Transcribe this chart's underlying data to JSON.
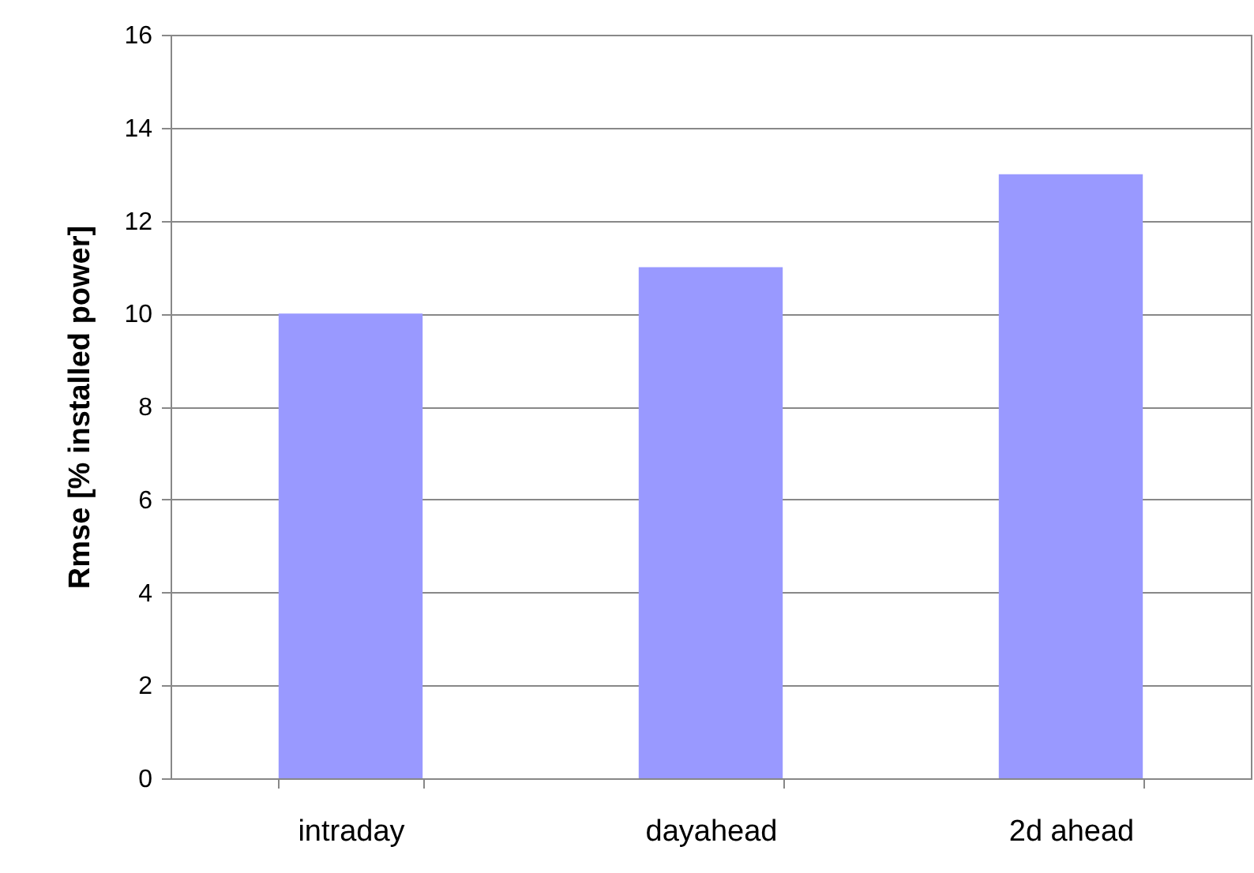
{
  "chart_data": {
    "type": "bar",
    "ylabel": "Rmse [% installed power]",
    "categories": [
      "intraday",
      "dayahead",
      "2d ahead"
    ],
    "series": [
      {
        "color": "#9999ff",
        "values": [
          10,
          11,
          13
        ]
      }
    ],
    "ylim": [
      0,
      16
    ],
    "yticks": [
      0,
      2,
      4,
      6,
      8,
      10,
      12,
      14,
      16
    ],
    "grid": "y"
  }
}
